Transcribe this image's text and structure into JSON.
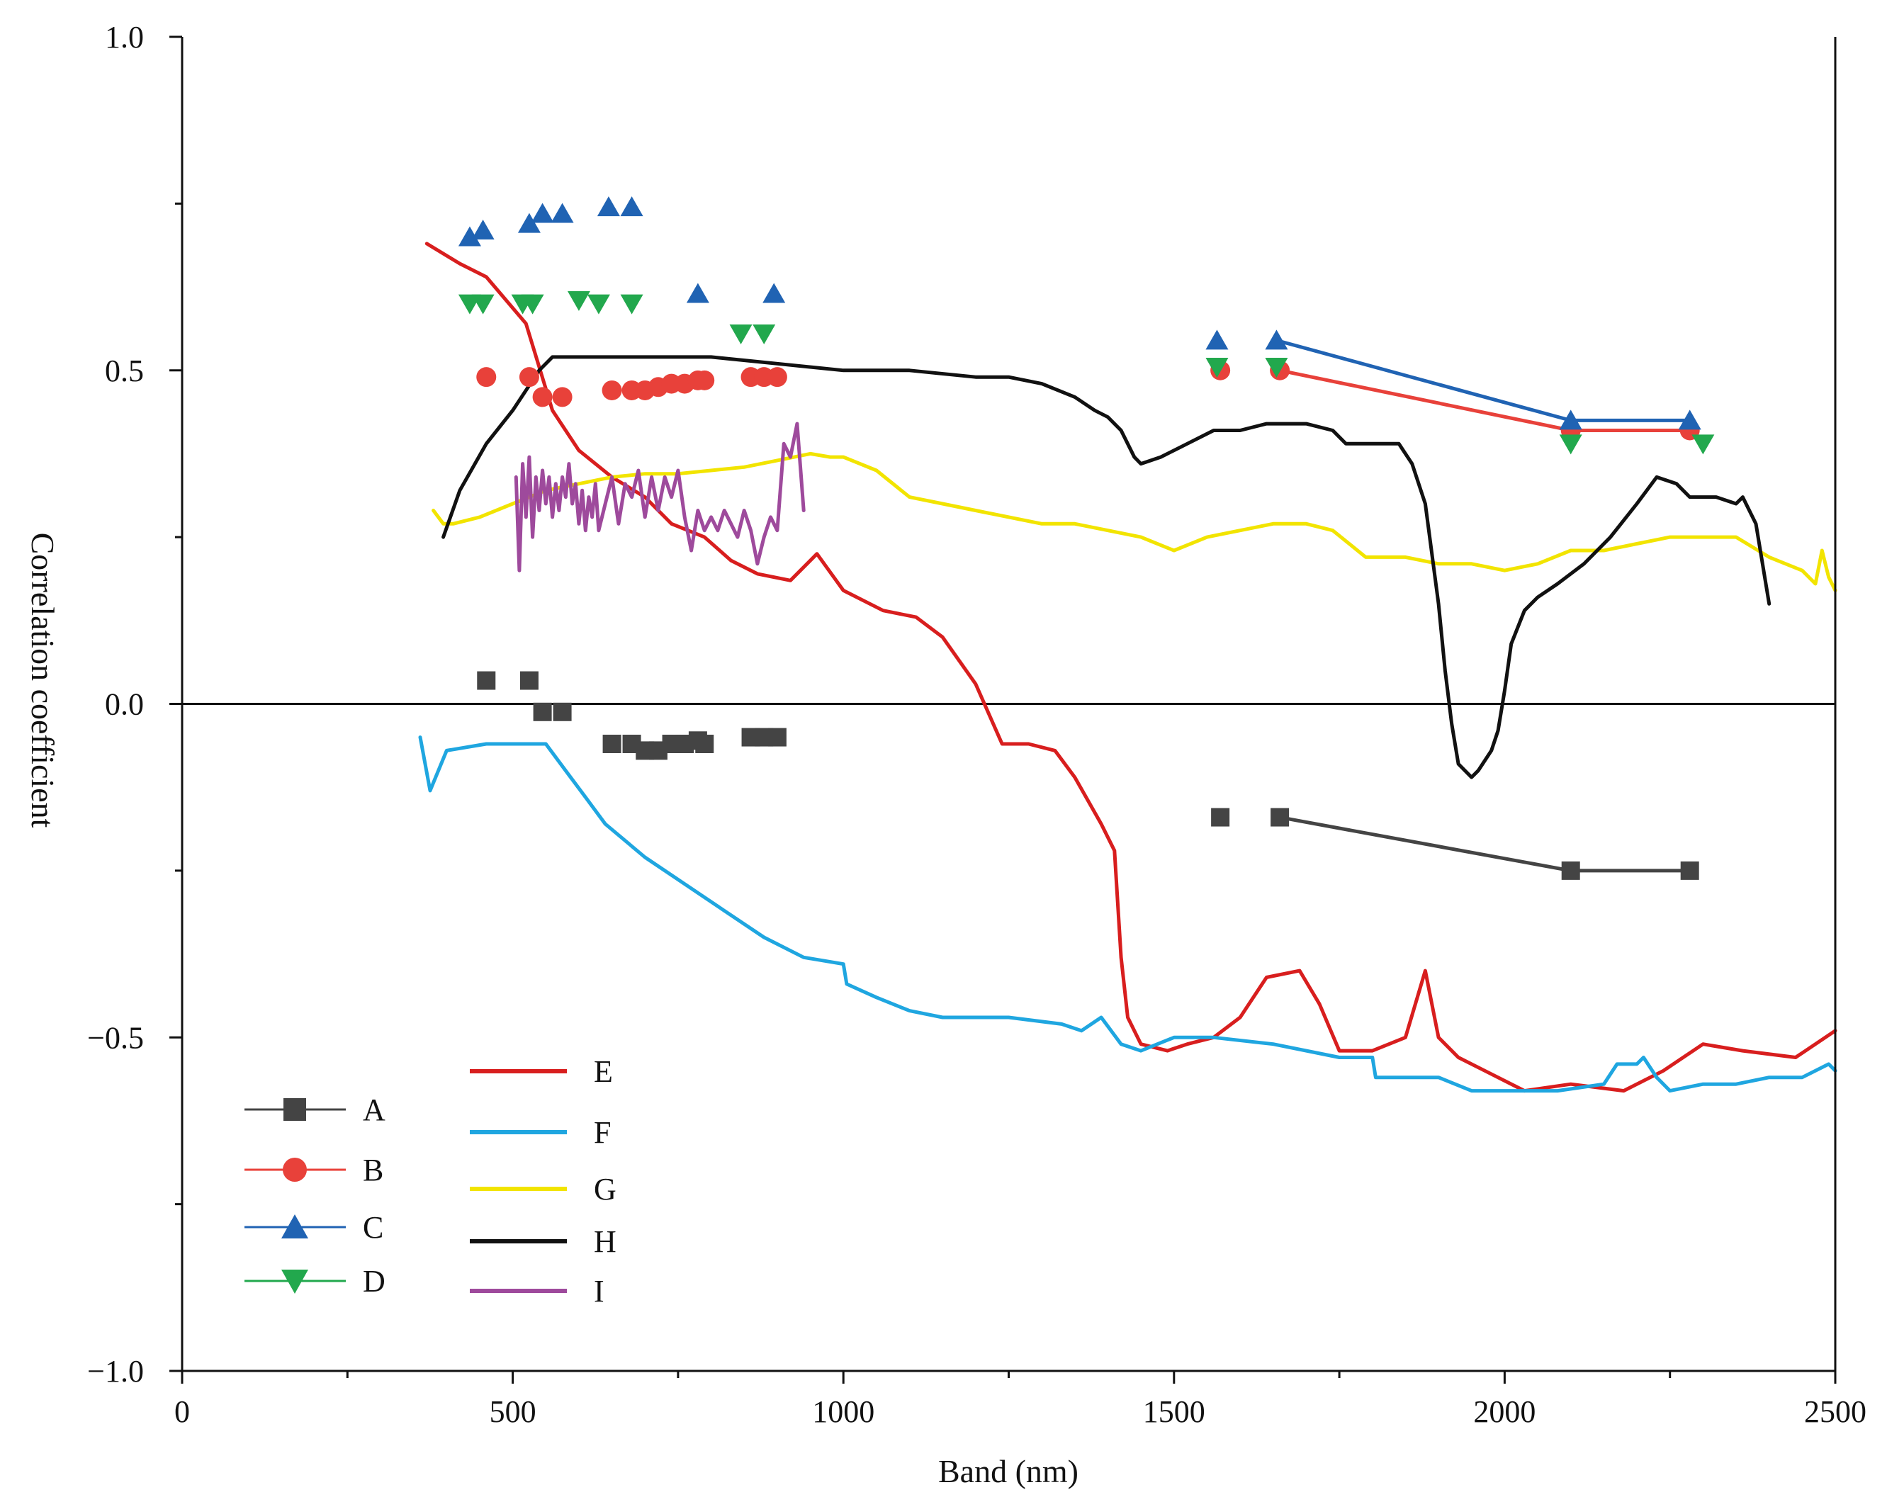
{
  "chart_data": {
    "type": "line",
    "title": "",
    "xlabel": "Band (nm)",
    "ylabel": "Correlation coefficient",
    "xlim": [
      0,
      2500
    ],
    "ylim": [
      -1.0,
      1.0
    ],
    "x_ticks": [
      0,
      500,
      1000,
      1500,
      2000,
      2500
    ],
    "x_tick_labels": [
      "0",
      "500",
      "1000",
      "1500",
      "2000",
      "2500"
    ],
    "y_ticks": [
      1.0,
      0.5,
      0.0,
      -0.5,
      -1.0
    ],
    "y_tick_labels": [
      "1.0",
      "0.5",
      "0.0",
      "−0.5",
      "−1.0"
    ],
    "zero_line": true,
    "marker_series": [
      {
        "name": "A",
        "color": "#444444",
        "marker": "square",
        "points": [
          [
            460,
            0.035
          ],
          [
            525,
            0.035
          ],
          [
            545,
            -0.012
          ],
          [
            575,
            -0.012
          ],
          [
            650,
            -0.06
          ],
          [
            680,
            -0.06
          ],
          [
            700,
            -0.07
          ],
          [
            720,
            -0.07
          ],
          [
            740,
            -0.06
          ],
          [
            760,
            -0.06
          ],
          [
            780,
            -0.055
          ],
          [
            790,
            -0.06
          ],
          [
            860,
            -0.05
          ],
          [
            880,
            -0.05
          ],
          [
            900,
            -0.05
          ],
          [
            1570,
            -0.17
          ],
          [
            1660,
            -0.17
          ],
          [
            2100,
            -0.25
          ],
          [
            2280,
            -0.25
          ]
        ],
        "line_points": [
          [
            1660,
            -0.17
          ],
          [
            2100,
            -0.25
          ],
          [
            2280,
            -0.25
          ]
        ]
      },
      {
        "name": "B",
        "color": "#e8413a",
        "marker": "circle",
        "points": [
          [
            460,
            0.49
          ],
          [
            525,
            0.49
          ],
          [
            545,
            0.46
          ],
          [
            575,
            0.46
          ],
          [
            650,
            0.47
          ],
          [
            680,
            0.47
          ],
          [
            700,
            0.47
          ],
          [
            720,
            0.475
          ],
          [
            740,
            0.48
          ],
          [
            760,
            0.48
          ],
          [
            780,
            0.485
          ],
          [
            790,
            0.485
          ],
          [
            860,
            0.49
          ],
          [
            880,
            0.49
          ],
          [
            900,
            0.49
          ],
          [
            1570,
            0.5
          ],
          [
            1660,
            0.5
          ],
          [
            2100,
            0.41
          ],
          [
            2280,
            0.41
          ]
        ],
        "line_points": [
          [
            1660,
            0.5
          ],
          [
            2100,
            0.41
          ],
          [
            2280,
            0.41
          ]
        ]
      },
      {
        "name": "C",
        "color": "#2063b3",
        "marker": "triangle-up",
        "points": [
          [
            435,
            0.7
          ],
          [
            455,
            0.71
          ],
          [
            525,
            0.72
          ],
          [
            545,
            0.735
          ],
          [
            575,
            0.735
          ],
          [
            645,
            0.745
          ],
          [
            680,
            0.745
          ],
          [
            780,
            0.615
          ],
          [
            895,
            0.615
          ],
          [
            1565,
            0.545
          ],
          [
            1655,
            0.545
          ],
          [
            2100,
            0.425
          ],
          [
            2280,
            0.425
          ]
        ],
        "line_points": [
          [
            1655,
            0.545
          ],
          [
            2100,
            0.425
          ],
          [
            2280,
            0.425
          ]
        ]
      },
      {
        "name": "D",
        "color": "#22a84d",
        "marker": "triangle-down",
        "points": [
          [
            435,
            0.6
          ],
          [
            455,
            0.6
          ],
          [
            515,
            0.6
          ],
          [
            530,
            0.6
          ],
          [
            600,
            0.605
          ],
          [
            630,
            0.6
          ],
          [
            680,
            0.6
          ],
          [
            845,
            0.555
          ],
          [
            880,
            0.555
          ],
          [
            1565,
            0.505
          ],
          [
            1655,
            0.505
          ],
          [
            2100,
            0.39
          ],
          [
            2300,
            0.39
          ]
        ]
      }
    ],
    "line_series": [
      {
        "name": "E",
        "color": "#d81e1e",
        "x": [
          370,
          420,
          460,
          520,
          560,
          600,
          650,
          700,
          740,
          790,
          830,
          870,
          920,
          960,
          1000,
          1060,
          1110,
          1150,
          1200,
          1240,
          1280,
          1320,
          1350,
          1390,
          1410,
          1420,
          1430,
          1450,
          1490,
          1520,
          1560,
          1600,
          1640,
          1690,
          1720,
          1750,
          1800,
          1850,
          1880,
          1900,
          1930,
          1970,
          2030,
          2100,
          2180,
          2240,
          2300,
          2360,
          2440,
          2500
        ],
        "y": [
          0.69,
          0.66,
          0.64,
          0.57,
          0.44,
          0.38,
          0.34,
          0.31,
          0.27,
          0.25,
          0.215,
          0.195,
          0.185,
          0.225,
          0.17,
          0.14,
          0.13,
          0.1,
          0.03,
          -0.06,
          -0.06,
          -0.07,
          -0.11,
          -0.18,
          -0.22,
          -0.38,
          -0.47,
          -0.51,
          -0.52,
          -0.51,
          -0.5,
          -0.47,
          -0.41,
          -0.4,
          -0.45,
          -0.52,
          -0.52,
          -0.5,
          -0.4,
          -0.5,
          -0.53,
          -0.55,
          -0.58,
          -0.57,
          -0.58,
          -0.55,
          -0.51,
          -0.52,
          -0.53,
          -0.49
        ]
      },
      {
        "name": "F",
        "color": "#1fa6e0",
        "x": [
          360,
          375,
          400,
          460,
          520,
          550,
          580,
          610,
          640,
          700,
          760,
          820,
          880,
          940,
          1000,
          1005,
          1050,
          1100,
          1150,
          1250,
          1330,
          1360,
          1390,
          1420,
          1450,
          1500,
          1560,
          1650,
          1750,
          1800,
          1805,
          1900,
          1950,
          2000,
          2030,
          2080,
          2150,
          2170,
          2200,
          2210,
          2230,
          2250,
          2300,
          2350,
          2400,
          2450,
          2490,
          2500
        ],
        "y": [
          -0.05,
          -0.13,
          -0.07,
          -0.06,
          -0.06,
          -0.06,
          -0.1,
          -0.14,
          -0.18,
          -0.23,
          -0.27,
          -0.31,
          -0.35,
          -0.38,
          -0.39,
          -0.42,
          -0.44,
          -0.46,
          -0.47,
          -0.47,
          -0.48,
          -0.49,
          -0.47,
          -0.51,
          -0.52,
          -0.5,
          -0.5,
          -0.51,
          -0.53,
          -0.53,
          -0.56,
          -0.56,
          -0.58,
          -0.58,
          -0.58,
          -0.58,
          -0.57,
          -0.54,
          -0.54,
          -0.53,
          -0.56,
          -0.58,
          -0.57,
          -0.57,
          -0.56,
          -0.56,
          -0.54,
          -0.55
        ]
      },
      {
        "name": "G",
        "color": "#f2e400",
        "x": [
          380,
          395,
          410,
          450,
          500,
          550,
          600,
          650,
          700,
          750,
          800,
          850,
          900,
          950,
          980,
          1000,
          1050,
          1100,
          1150,
          1200,
          1300,
          1350,
          1400,
          1450,
          1500,
          1550,
          1600,
          1650,
          1700,
          1740,
          1790,
          1850,
          1900,
          1950,
          2000,
          2050,
          2100,
          2150,
          2200,
          2250,
          2300,
          2350,
          2400,
          2450,
          2470,
          2480,
          2490,
          2500
        ],
        "y": [
          0.29,
          0.27,
          0.27,
          0.28,
          0.3,
          0.32,
          0.33,
          0.34,
          0.345,
          0.345,
          0.35,
          0.355,
          0.365,
          0.375,
          0.37,
          0.37,
          0.35,
          0.31,
          0.3,
          0.29,
          0.27,
          0.27,
          0.26,
          0.25,
          0.23,
          0.25,
          0.26,
          0.27,
          0.27,
          0.26,
          0.22,
          0.22,
          0.21,
          0.21,
          0.2,
          0.21,
          0.23,
          0.23,
          0.24,
          0.25,
          0.25,
          0.25,
          0.22,
          0.2,
          0.18,
          0.23,
          0.19,
          0.17
        ]
      },
      {
        "name": "H",
        "color": "#111111",
        "x": [
          395,
          420,
          460,
          500,
          540,
          560,
          600,
          700,
          800,
          900,
          1000,
          1100,
          1200,
          1250,
          1300,
          1350,
          1380,
          1400,
          1420,
          1440,
          1450,
          1480,
          1520,
          1560,
          1600,
          1640,
          1700,
          1740,
          1760,
          1800,
          1840,
          1860,
          1880,
          1900,
          1910,
          1920,
          1930,
          1950,
          1960,
          1980,
          1990,
          2000,
          2010,
          2030,
          2050,
          2080,
          2120,
          2160,
          2200,
          2230,
          2260,
          2280,
          2320,
          2350,
          2360,
          2380,
          2400
        ],
        "y": [
          0.25,
          0.32,
          0.39,
          0.44,
          0.5,
          0.52,
          0.52,
          0.52,
          0.52,
          0.51,
          0.5,
          0.5,
          0.49,
          0.49,
          0.48,
          0.46,
          0.44,
          0.43,
          0.41,
          0.37,
          0.36,
          0.37,
          0.39,
          0.41,
          0.41,
          0.42,
          0.42,
          0.41,
          0.39,
          0.39,
          0.39,
          0.36,
          0.3,
          0.15,
          0.05,
          -0.03,
          -0.09,
          -0.11,
          -0.1,
          -0.07,
          -0.04,
          0.02,
          0.09,
          0.14,
          0.16,
          0.18,
          0.21,
          0.25,
          0.3,
          0.34,
          0.33,
          0.31,
          0.31,
          0.3,
          0.31,
          0.27,
          0.15
        ]
      },
      {
        "name": "I",
        "color": "#9e4a9c",
        "x": [
          505,
          510,
          515,
          520,
          525,
          530,
          535,
          540,
          545,
          550,
          555,
          560,
          565,
          570,
          575,
          580,
          585,
          590,
          595,
          600,
          605,
          610,
          615,
          620,
          625,
          630,
          640,
          650,
          660,
          670,
          680,
          690,
          700,
          710,
          720,
          730,
          740,
          750,
          760,
          770,
          780,
          790,
          800,
          810,
          820,
          830,
          840,
          850,
          860,
          870,
          880,
          890,
          900,
          910,
          920,
          930,
          940
        ],
        "y": [
          0.34,
          0.2,
          0.36,
          0.28,
          0.37,
          0.25,
          0.34,
          0.29,
          0.35,
          0.3,
          0.34,
          0.28,
          0.33,
          0.29,
          0.34,
          0.31,
          0.36,
          0.3,
          0.33,
          0.27,
          0.32,
          0.26,
          0.31,
          0.28,
          0.33,
          0.26,
          0.3,
          0.34,
          0.27,
          0.33,
          0.31,
          0.35,
          0.28,
          0.34,
          0.29,
          0.34,
          0.31,
          0.35,
          0.28,
          0.23,
          0.29,
          0.26,
          0.28,
          0.26,
          0.29,
          0.27,
          0.25,
          0.29,
          0.26,
          0.21,
          0.25,
          0.28,
          0.26,
          0.39,
          0.37,
          0.42,
          0.29
        ]
      }
    ],
    "legend": {
      "position": "bottom-left",
      "columns": [
        [
          "A",
          "B",
          "C",
          "D"
        ],
        [
          "E",
          "F",
          "G",
          "H",
          "I"
        ]
      ]
    }
  }
}
